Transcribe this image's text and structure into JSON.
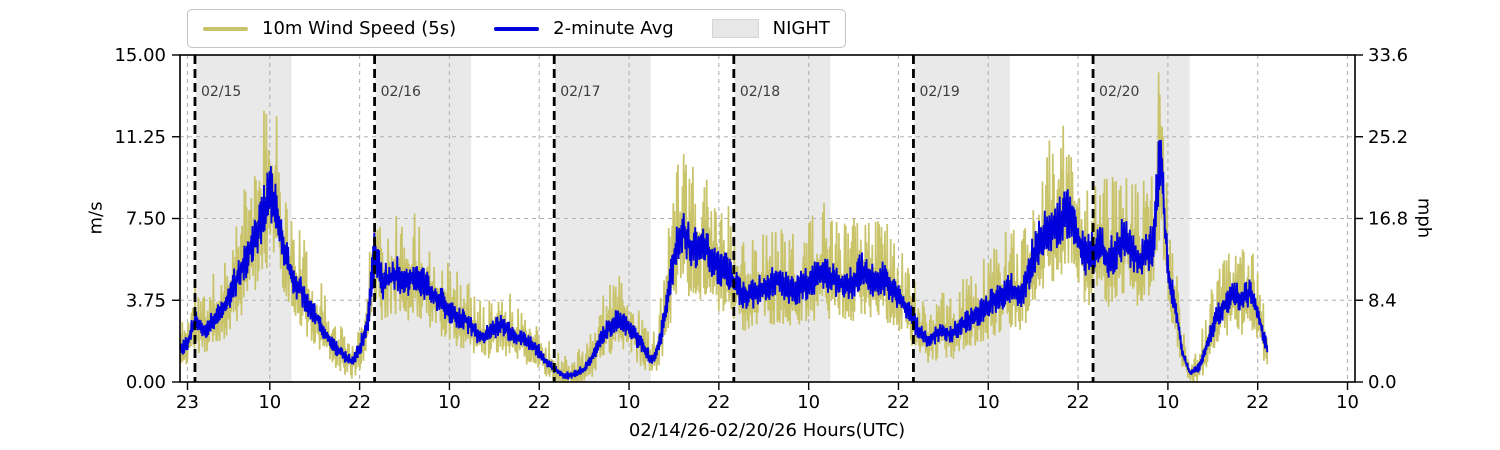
{
  "chart_data": {
    "type": "line",
    "title": "",
    "xlabel": "02/14/26-02/20/26  Hours(UTC)",
    "ylabel_left": "m/s",
    "ylabel_right": "mph",
    "x_hours_origin": "02/14 22:00 UTC",
    "xlim_hours": [
      0,
      157
    ],
    "ylim_left": [
      0,
      15
    ],
    "ylim_right": [
      0,
      33.6
    ],
    "grid": true,
    "legend_position": "upper-left-outside",
    "x_ticks": [
      {
        "t": 1,
        "label": "23"
      },
      {
        "t": 12,
        "label": "10"
      },
      {
        "t": 24,
        "label": "22"
      },
      {
        "t": 36,
        "label": "10"
      },
      {
        "t": 48,
        "label": "22"
      },
      {
        "t": 60,
        "label": "10"
      },
      {
        "t": 72,
        "label": "22"
      },
      {
        "t": 84,
        "label": "10"
      },
      {
        "t": 96,
        "label": "22"
      },
      {
        "t": 108,
        "label": "10"
      },
      {
        "t": 120,
        "label": "22"
      },
      {
        "t": 132,
        "label": "10"
      },
      {
        "t": 144,
        "label": "22"
      },
      {
        "t": 156,
        "label": "10"
      }
    ],
    "y_ticks_left": [
      {
        "v": 0,
        "label": "0.00"
      },
      {
        "v": 3.75,
        "label": "3.75"
      },
      {
        "v": 7.5,
        "label": "7.50"
      },
      {
        "v": 11.25,
        "label": "11.25"
      },
      {
        "v": 15,
        "label": "15.00"
      }
    ],
    "y_ticks_right": [
      {
        "v": 0,
        "label": "0.0"
      },
      {
        "v": 3.75,
        "label": "8.4"
      },
      {
        "v": 7.5,
        "label": "16.8"
      },
      {
        "v": 11.25,
        "label": "25.2"
      },
      {
        "v": 15,
        "label": "33.6"
      }
    ],
    "day_markers": [
      {
        "t": 2,
        "label": "02/15"
      },
      {
        "t": 26,
        "label": "02/16"
      },
      {
        "t": 50,
        "label": "02/17"
      },
      {
        "t": 74,
        "label": "02/18"
      },
      {
        "t": 98,
        "label": "02/19"
      },
      {
        "t": 122,
        "label": "02/20"
      }
    ],
    "night_bands": [
      [
        2.1,
        14.9
      ],
      [
        26.1,
        38.9
      ],
      [
        50.1,
        62.9
      ],
      [
        74.1,
        86.9
      ],
      [
        98.1,
        110.9
      ],
      [
        122.1,
        134.9
      ]
    ],
    "night": {
      "label": "NIGHT",
      "fill": "#e9e9e9"
    },
    "colors": {
      "raw": "#c9c36a",
      "avg": "#0000dd",
      "grid": "#b3b3b3",
      "day_line": "#000000",
      "day_label": "#3d3d3d",
      "axis": "#000000",
      "night_patch": "#e7e7e7"
    },
    "legend": [
      {
        "label": "10m Wind Speed (5s)",
        "swatch": "line",
        "color": "#c9c36a"
      },
      {
        "label": "2-minute Avg",
        "swatch": "line",
        "color": "#0000dd"
      },
      {
        "label": "NIGHT",
        "swatch": "patch",
        "color": "#e7e7e7"
      }
    ],
    "data_end_t": 145.3,
    "series": [
      {
        "name": "10m Wind Speed (5s)",
        "kind": "raw-5s-envelope",
        "color": "#c9c36a",
        "gust_amplitude": {
          "base": 0.55,
          "per_ms": 0.33
        }
      },
      {
        "name": "2-minute Avg",
        "kind": "2min-avg",
        "color": "#0000dd",
        "t_step_hours": 1,
        "hourly_values": [
          1.5,
          1.8,
          2.9,
          2.4,
          2.7,
          3.1,
          3.6,
          4.3,
          5.1,
          5.9,
          6.7,
          7.7,
          8.8,
          7.8,
          5.9,
          4.8,
          4.3,
          3.7,
          3.1,
          2.5,
          1.9,
          1.5,
          1.2,
          0.9,
          1.6,
          2.6,
          6.2,
          4.6,
          4.8,
          5.0,
          4.7,
          4.9,
          4.8,
          4.4,
          4.0,
          3.7,
          3.3,
          3.0,
          2.9,
          2.5,
          2.1,
          2.2,
          2.5,
          2.6,
          2.3,
          2.1,
          1.9,
          1.7,
          1.4,
          0.9,
          0.6,
          0.35,
          0.3,
          0.45,
          0.6,
          1.1,
          1.9,
          2.4,
          2.8,
          2.8,
          2.5,
          2.0,
          1.6,
          1.0,
          1.7,
          3.6,
          5.9,
          7.0,
          6.4,
          6.1,
          6.4,
          5.7,
          5.3,
          5.1,
          4.6,
          4.1,
          4.0,
          4.2,
          4.4,
          4.5,
          4.7,
          4.4,
          4.2,
          4.4,
          4.6,
          4.9,
          5.1,
          4.8,
          4.6,
          4.4,
          4.7,
          5.2,
          4.9,
          4.6,
          4.8,
          4.4,
          4.0,
          3.5,
          2.8,
          2.2,
          2.0,
          2.2,
          2.4,
          2.2,
          2.5,
          2.8,
          3.0,
          3.3,
          3.6,
          3.9,
          4.1,
          4.4,
          4.0,
          4.6,
          5.9,
          6.6,
          7.0,
          7.2,
          7.6,
          7.9,
          6.6,
          5.8,
          6.0,
          6.4,
          5.7,
          6.1,
          6.6,
          6.2,
          5.6,
          5.9,
          6.4,
          10.8,
          5.0,
          3.4,
          1.2,
          0.4,
          0.6,
          1.5,
          2.6,
          3.3,
          3.8,
          4.1,
          3.8,
          4.2,
          3.2,
          1.8,
          1.0,
          0.8
        ]
      }
    ]
  }
}
